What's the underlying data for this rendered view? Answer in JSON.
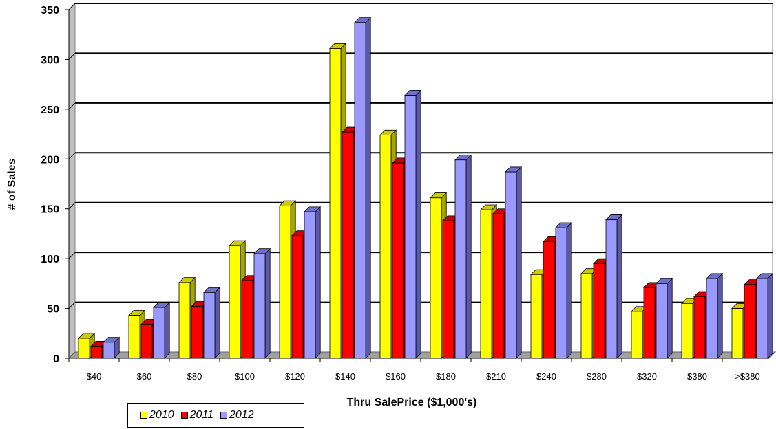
{
  "chart_data": {
    "type": "bar",
    "title": "",
    "xlabel": "Thru SalePrice ($1,000's)",
    "ylabel": "# of Sales",
    "ylim": [
      0,
      350
    ],
    "yticks": [
      "0",
      "50",
      "100",
      "150",
      "200",
      "250",
      "300",
      "350"
    ],
    "grid": true,
    "three_d": true,
    "legend_position": "bottom-left",
    "categories": [
      "$40",
      "$60",
      "$80",
      "$100",
      "$120",
      "$140",
      "$160",
      "$180",
      "$210",
      "$240",
      "$280",
      "$320",
      "$380",
      ">$380"
    ],
    "series": [
      {
        "name": "2010",
        "color": "#ffff00",
        "values": [
          20,
          43,
          76,
          113,
          153,
          311,
          224,
          161,
          149,
          84,
          85,
          47,
          55,
          50
        ]
      },
      {
        "name": "2011",
        "color": "#ff0000",
        "values": [
          12,
          34,
          52,
          78,
          123,
          227,
          196,
          138,
          145,
          117,
          95,
          71,
          62,
          74
        ]
      },
      {
        "name": "2012",
        "color": "#9999ff",
        "values": [
          16,
          51,
          66,
          105,
          147,
          337,
          264,
          199,
          187,
          131,
          139,
          75,
          80,
          80
        ]
      }
    ]
  }
}
